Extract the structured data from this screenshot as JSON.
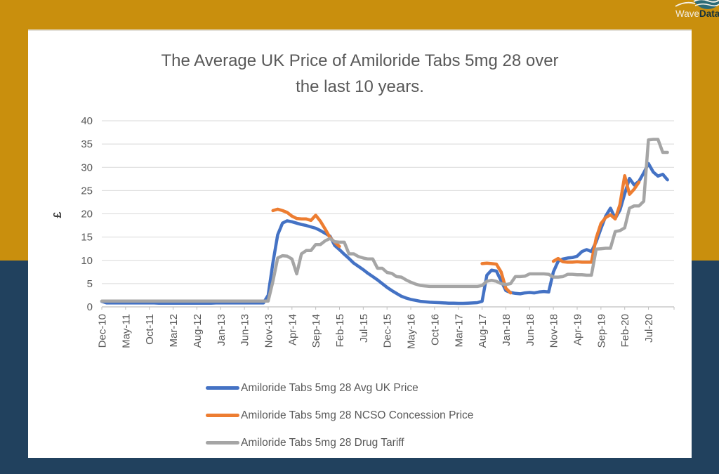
{
  "page": {
    "background_top_color": "#C98F0D",
    "background_bottom_color": "#21415E",
    "card_color": "#FFFFFF"
  },
  "logo": {
    "text_prefix": "Wave",
    "text_suffix": "Data",
    "icon_color": "#2C6B77",
    "prefix_color": "#F2EDE2",
    "suffix_color": "#16323C"
  },
  "chart_data": {
    "type": "line",
    "title_line1": "The Average UK Price of Amiloride Tabs 5mg 28 over",
    "title_line2": "the last 10 years.",
    "ylabel": "£",
    "ylim": [
      0,
      40
    ],
    "y_ticks": [
      0,
      5,
      10,
      15,
      20,
      25,
      30,
      35,
      40
    ],
    "grid": true,
    "grid_color": "#D9D9D9",
    "axis_color": "#BFBFBF",
    "text_color": "#595959",
    "legend_position": "bottom",
    "x_tick_interval": 5,
    "x_tick_labels": [
      "Dec-10",
      "May-11",
      "Oct-11",
      "Mar-12",
      "Aug-12",
      "Jan-13",
      "Jun-13",
      "Nov-13",
      "Apr-14",
      "Sep-14",
      "Feb-15",
      "Jul-15",
      "Dec-15",
      "May-16",
      "Oct-16",
      "Mar-17",
      "Aug-17",
      "Jan-18",
      "Jun-18",
      "Nov-18",
      "Apr-19",
      "Sep-19",
      "Feb-20",
      "Jul-20"
    ],
    "months": [
      "Dec-10",
      "Jan-11",
      "Feb-11",
      "Mar-11",
      "Apr-11",
      "May-11",
      "Jun-11",
      "Jul-11",
      "Aug-11",
      "Sep-11",
      "Oct-11",
      "Nov-11",
      "Dec-11",
      "Jan-12",
      "Feb-12",
      "Mar-12",
      "Apr-12",
      "May-12",
      "Jun-12",
      "Jul-12",
      "Aug-12",
      "Sep-12",
      "Oct-12",
      "Nov-12",
      "Dec-12",
      "Jan-13",
      "Feb-13",
      "Mar-13",
      "Apr-13",
      "May-13",
      "Jun-13",
      "Jul-13",
      "Aug-13",
      "Sep-13",
      "Oct-13",
      "Nov-13",
      "Dec-13",
      "Jan-14",
      "Feb-14",
      "Mar-14",
      "Apr-14",
      "May-14",
      "Jun-14",
      "Jul-14",
      "Aug-14",
      "Sep-14",
      "Oct-14",
      "Nov-14",
      "Dec-14",
      "Jan-15",
      "Feb-15",
      "Mar-15",
      "Apr-15",
      "May-15",
      "Jun-15",
      "Jul-15",
      "Aug-15",
      "Sep-15",
      "Oct-15",
      "Nov-15",
      "Dec-15",
      "Jan-16",
      "Feb-16",
      "Mar-16",
      "Apr-16",
      "May-16",
      "Jun-16",
      "Jul-16",
      "Aug-16",
      "Sep-16",
      "Oct-16",
      "Nov-16",
      "Dec-16",
      "Jan-17",
      "Feb-17",
      "Mar-17",
      "Apr-17",
      "May-17",
      "Jun-17",
      "Jul-17",
      "Aug-17",
      "Sep-17",
      "Oct-17",
      "Nov-17",
      "Dec-17",
      "Jan-18",
      "Feb-18",
      "Mar-18",
      "Apr-18",
      "May-18",
      "Jun-18",
      "Jul-18",
      "Aug-18",
      "Sep-18",
      "Oct-18",
      "Nov-18",
      "Dec-18",
      "Jan-19",
      "Feb-19",
      "Mar-19",
      "Apr-19",
      "May-19",
      "Jun-19",
      "Jul-19",
      "Aug-19",
      "Sep-19",
      "Oct-19",
      "Nov-19",
      "Dec-19",
      "Jan-20",
      "Feb-20",
      "Mar-20",
      "Apr-20",
      "May-20",
      "Jun-20",
      "Jul-20",
      "Aug-20",
      "Sep-20",
      "Oct-20",
      "Nov-20"
    ],
    "series": [
      {
        "name": "Amiloride Tabs 5mg 28 Avg UK Price",
        "color": "#4472C4",
        "values": [
          1.2,
          0.85,
          0.85,
          0.85,
          0.85,
          0.85,
          0.85,
          0.85,
          0.85,
          0.85,
          0.85,
          0.85,
          0.8,
          0.8,
          0.8,
          0.8,
          0.8,
          0.8,
          0.8,
          0.8,
          0.8,
          0.8,
          0.8,
          0.8,
          0.85,
          0.85,
          0.85,
          0.85,
          0.85,
          0.85,
          0.85,
          0.85,
          0.85,
          0.85,
          0.85,
          2.5,
          9.5,
          15.5,
          18,
          18.5,
          18.3,
          18,
          17.7,
          17.5,
          17.2,
          16.9,
          16.4,
          15.8,
          15.2,
          13.2,
          12.3,
          11.3,
          10.4,
          9.4,
          8.7,
          8,
          7.2,
          6.5,
          5.8,
          5,
          4.2,
          3.5,
          2.9,
          2.3,
          1.9,
          1.6,
          1.4,
          1.2,
          1.1,
          1,
          0.95,
          0.9,
          0.85,
          0.8,
          0.8,
          0.75,
          0.75,
          0.8,
          0.85,
          0.9,
          1.2,
          6.8,
          7.9,
          7.7,
          5.6,
          3.5,
          3.1,
          2.9,
          2.8,
          3,
          3.1,
          3,
          3.2,
          3.3,
          3.2,
          7.5,
          9.8,
          10.3,
          10.5,
          10.6,
          10.9,
          11.9,
          12.3,
          11.9,
          14,
          16.8,
          19.5,
          21.2,
          19,
          20.8,
          24.3,
          27.6,
          26.2,
          27,
          28.8,
          30.8,
          29,
          28.1,
          28.5,
          27.3
        ]
      },
      {
        "name": "Amiloride Tabs 5mg 28 NCSO Concession Price",
        "color": "#ED7D31",
        "values": [
          null,
          null,
          null,
          null,
          null,
          null,
          null,
          null,
          null,
          null,
          null,
          null,
          null,
          null,
          null,
          null,
          null,
          null,
          null,
          null,
          null,
          null,
          null,
          null,
          null,
          null,
          null,
          null,
          null,
          null,
          null,
          null,
          null,
          null,
          null,
          null,
          20.7,
          21,
          20.7,
          20.3,
          19.5,
          19,
          18.9,
          18.9,
          18.6,
          19.7,
          18.4,
          16.7,
          14.9,
          13.9,
          13,
          null,
          null,
          null,
          null,
          null,
          null,
          null,
          null,
          null,
          null,
          null,
          null,
          null,
          null,
          null,
          null,
          null,
          null,
          null,
          null,
          null,
          null,
          null,
          null,
          null,
          null,
          null,
          null,
          null,
          9.3,
          9.4,
          9.3,
          9.2,
          7.5,
          4,
          3,
          null,
          null,
          null,
          null,
          null,
          null,
          null,
          null,
          9.8,
          10.4,
          9.7,
          9.6,
          9.6,
          9.7,
          9.6,
          9.6,
          9.6,
          14.8,
          17.9,
          19.2,
          19.8,
          18.9,
          22,
          28.2,
          24.2,
          25.3,
          26.8,
          null,
          null,
          null,
          null,
          null,
          null
        ]
      },
      {
        "name": "Amiloride Tabs 5mg 28 Drug Tariff",
        "color": "#A5A5A5",
        "values": [
          1.25,
          1.25,
          1.25,
          1.25,
          1.25,
          1.25,
          1.25,
          1.25,
          1.25,
          1.25,
          1.25,
          1.25,
          1.25,
          1.25,
          1.25,
          1.25,
          1.25,
          1.25,
          1.25,
          1.25,
          1.25,
          1.25,
          1.25,
          1.25,
          1.25,
          1.25,
          1.25,
          1.25,
          1.25,
          1.25,
          1.25,
          1.25,
          1.25,
          1.25,
          1.25,
          1.25,
          5.5,
          10.5,
          11,
          10.9,
          10.3,
          7.1,
          11.4,
          12.1,
          12.1,
          13.4,
          13.4,
          14.2,
          14.7,
          14,
          13.9,
          13.9,
          11.4,
          11.4,
          10.8,
          10.5,
          10.3,
          10.3,
          8.3,
          8.3,
          7.4,
          7.2,
          6.5,
          6.4,
          5.8,
          5.3,
          4.9,
          4.6,
          4.5,
          4.4,
          4.4,
          4.4,
          4.4,
          4.4,
          4.4,
          4.4,
          4.4,
          4.4,
          4.4,
          4.4,
          4.6,
          5.5,
          5.7,
          5.5,
          5,
          4.8,
          5,
          6.5,
          6.5,
          6.6,
          7.1,
          7.1,
          7.1,
          7.1,
          7,
          6.4,
          6.4,
          6.5,
          7,
          7,
          6.9,
          6.9,
          6.8,
          6.8,
          12.4,
          12.5,
          12.6,
          12.6,
          16.2,
          16.4,
          17,
          21.2,
          21.7,
          21.7,
          22.7,
          35.9,
          36,
          36,
          33.2,
          33.2
        ]
      }
    ]
  }
}
